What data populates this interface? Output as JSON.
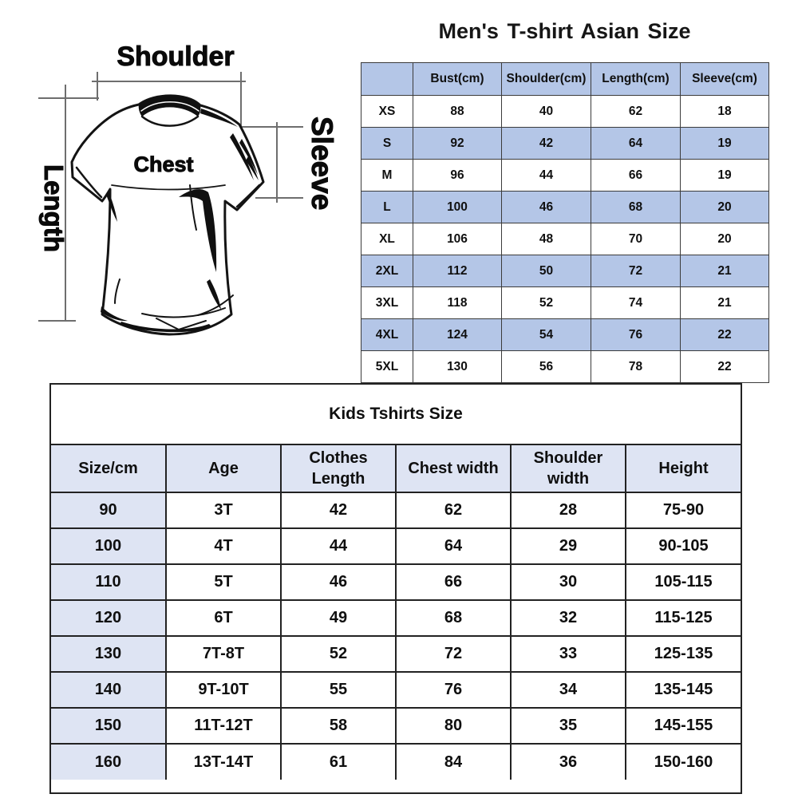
{
  "diagram": {
    "labels": {
      "shoulder": "Shoulder",
      "chest": "Chest",
      "length": "Length",
      "sleeve": "Sleeve"
    }
  },
  "mens_table": {
    "title": "Men's T-shirt Asian Size",
    "columns": [
      "",
      "Bust(cm)",
      "Shoulder(cm)",
      "Length(cm)",
      "Sleeve(cm)"
    ],
    "rows": [
      [
        "XS",
        "88",
        "40",
        "62",
        "18"
      ],
      [
        "S",
        "92",
        "42",
        "64",
        "19"
      ],
      [
        "M",
        "96",
        "44",
        "66",
        "19"
      ],
      [
        "L",
        "100",
        "46",
        "68",
        "20"
      ],
      [
        "XL",
        "106",
        "48",
        "70",
        "20"
      ],
      [
        "2XL",
        "112",
        "50",
        "72",
        "21"
      ],
      [
        "3XL",
        "118",
        "52",
        "74",
        "21"
      ],
      [
        "4XL",
        "124",
        "54",
        "76",
        "22"
      ],
      [
        "5XL",
        "130",
        "56",
        "78",
        "22"
      ]
    ]
  },
  "kids_table": {
    "title": "Kids Tshirts Size",
    "columns": [
      "Size/cm",
      "Age",
      "Clothes Length",
      "Chest width",
      "Shoulder width",
      "Height"
    ],
    "rows": [
      [
        "90",
        "3T",
        "42",
        "62",
        "28",
        "75-90"
      ],
      [
        "100",
        "4T",
        "44",
        "64",
        "29",
        "90-105"
      ],
      [
        "110",
        "5T",
        "46",
        "66",
        "30",
        "105-115"
      ],
      [
        "120",
        "6T",
        "49",
        "68",
        "32",
        "115-125"
      ],
      [
        "130",
        "7T-8T",
        "52",
        "72",
        "33",
        "125-135"
      ],
      [
        "140",
        "9T-10T",
        "55",
        "76",
        "34",
        "135-145"
      ],
      [
        "150",
        "11T-12T",
        "58",
        "80",
        "35",
        "145-155"
      ],
      [
        "160",
        "13T-14T",
        "61",
        "84",
        "36",
        "150-160"
      ]
    ]
  },
  "colors": {
    "mens_shade": "#b4c6e7",
    "kids_shade": "#dee4f3",
    "table_border": "#222222",
    "text": "#141414"
  }
}
